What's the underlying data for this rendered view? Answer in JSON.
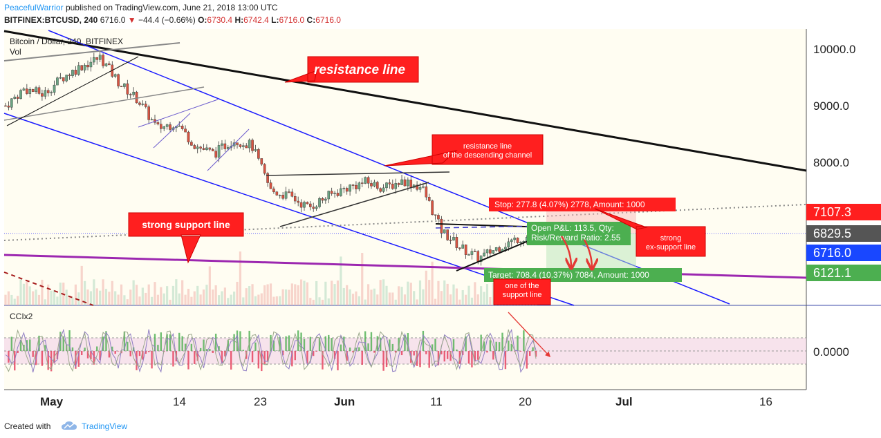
{
  "header": {
    "author": "PeacefulWarrior",
    "published_text": "published on TradingView.com, June 21, 2018 13:00 UTC",
    "symbol_line": "BITFINEX:BTCUSD, 240",
    "last_price": "6716.0",
    "change": "−44.4 (−0.66%)",
    "o_label": "O:",
    "o_value": "6730.4",
    "h_label": "H:",
    "h_value": "6742.4",
    "l_label": "L:",
    "l_value": "6716.0",
    "c_label": "C:",
    "c_value": "6716.0"
  },
  "chart_title": "Bitcoin / Dollar, 240, BITFINEX",
  "volume_label": "Vol",
  "cci_label": "CCIx2",
  "cci_value": "0.0000",
  "price_labels": [
    {
      "text": "7107.3",
      "color": "#ff1f1f"
    },
    {
      "text": "6829.5",
      "color": "#555555"
    },
    {
      "text": "6716.0",
      "color": "#1947ff"
    },
    {
      "text": "6121.1",
      "color": "#4caf50"
    }
  ],
  "annotations": {
    "resistance_line": "resistance line",
    "channel_line1": "resistance line",
    "channel_line2": "of the descending channel",
    "strong_support": "strong support line",
    "stop": "Stop: 277.8 (4.07%) 2778, Amount: 1000",
    "open_pl": "Open P&L: 113.5, Qty: ",
    "risk_reward": "Risk/Reward Ratio: 2.55",
    "strong_ex1": "strong",
    "strong_ex2": "ex-support line",
    "target": "Target: 708.4 (10.37%) 7084, Amount: 1000",
    "one_of1": "one of the",
    "one_of2": "support line"
  },
  "footer": {
    "created_with": "Created with",
    "brand": "TradingView"
  },
  "chart_data": {
    "type": "candlestick",
    "title": "Bitcoin / Dollar, 240, BITFINEX",
    "y_ticks": [
      10000.0,
      9000.0,
      8000.0
    ],
    "ylim": [
      5600,
      10400
    ],
    "x_ticks": [
      "May",
      "14",
      "23",
      "Jun",
      "11",
      "20",
      "Jul",
      "16"
    ],
    "colors": {
      "up": "#6ba583",
      "down": "#d75442",
      "channel": "#1a1aff",
      "support": "#9c27b0",
      "resistance": "#111111"
    },
    "close_path": [
      [
        "Apr 26",
        9000
      ],
      [
        "Apr 28",
        9300
      ],
      [
        "Apr 30",
        9200
      ],
      [
        "May 2",
        9500
      ],
      [
        "May 4",
        9700
      ],
      [
        "May 6",
        9850
      ],
      [
        "May 8",
        9400
      ],
      [
        "May 10",
        9100
      ],
      [
        "May 12",
        8600
      ],
      [
        "May 14",
        8700
      ],
      [
        "May 16",
        8300
      ],
      [
        "May 18",
        8150
      ],
      [
        "May 20",
        8400
      ],
      [
        "May 22",
        8300
      ],
      [
        "May 24",
        7500
      ],
      [
        "May 26",
        7400
      ],
      [
        "May 28",
        7200
      ],
      [
        "May 30",
        7400
      ],
      [
        "Jun 1",
        7550
      ],
      [
        "Jun 3",
        7650
      ],
      [
        "Jun 5",
        7550
      ],
      [
        "Jun 7",
        7680
      ],
      [
        "Jun 9",
        7550
      ],
      [
        "Jun 10",
        6800
      ],
      [
        "Jun 12",
        6500
      ],
      [
        "Jun 14",
        6300
      ],
      [
        "Jun 16",
        6500
      ],
      [
        "Jun 18",
        6650
      ],
      [
        "Jun 20",
        6716
      ]
    ]
  }
}
